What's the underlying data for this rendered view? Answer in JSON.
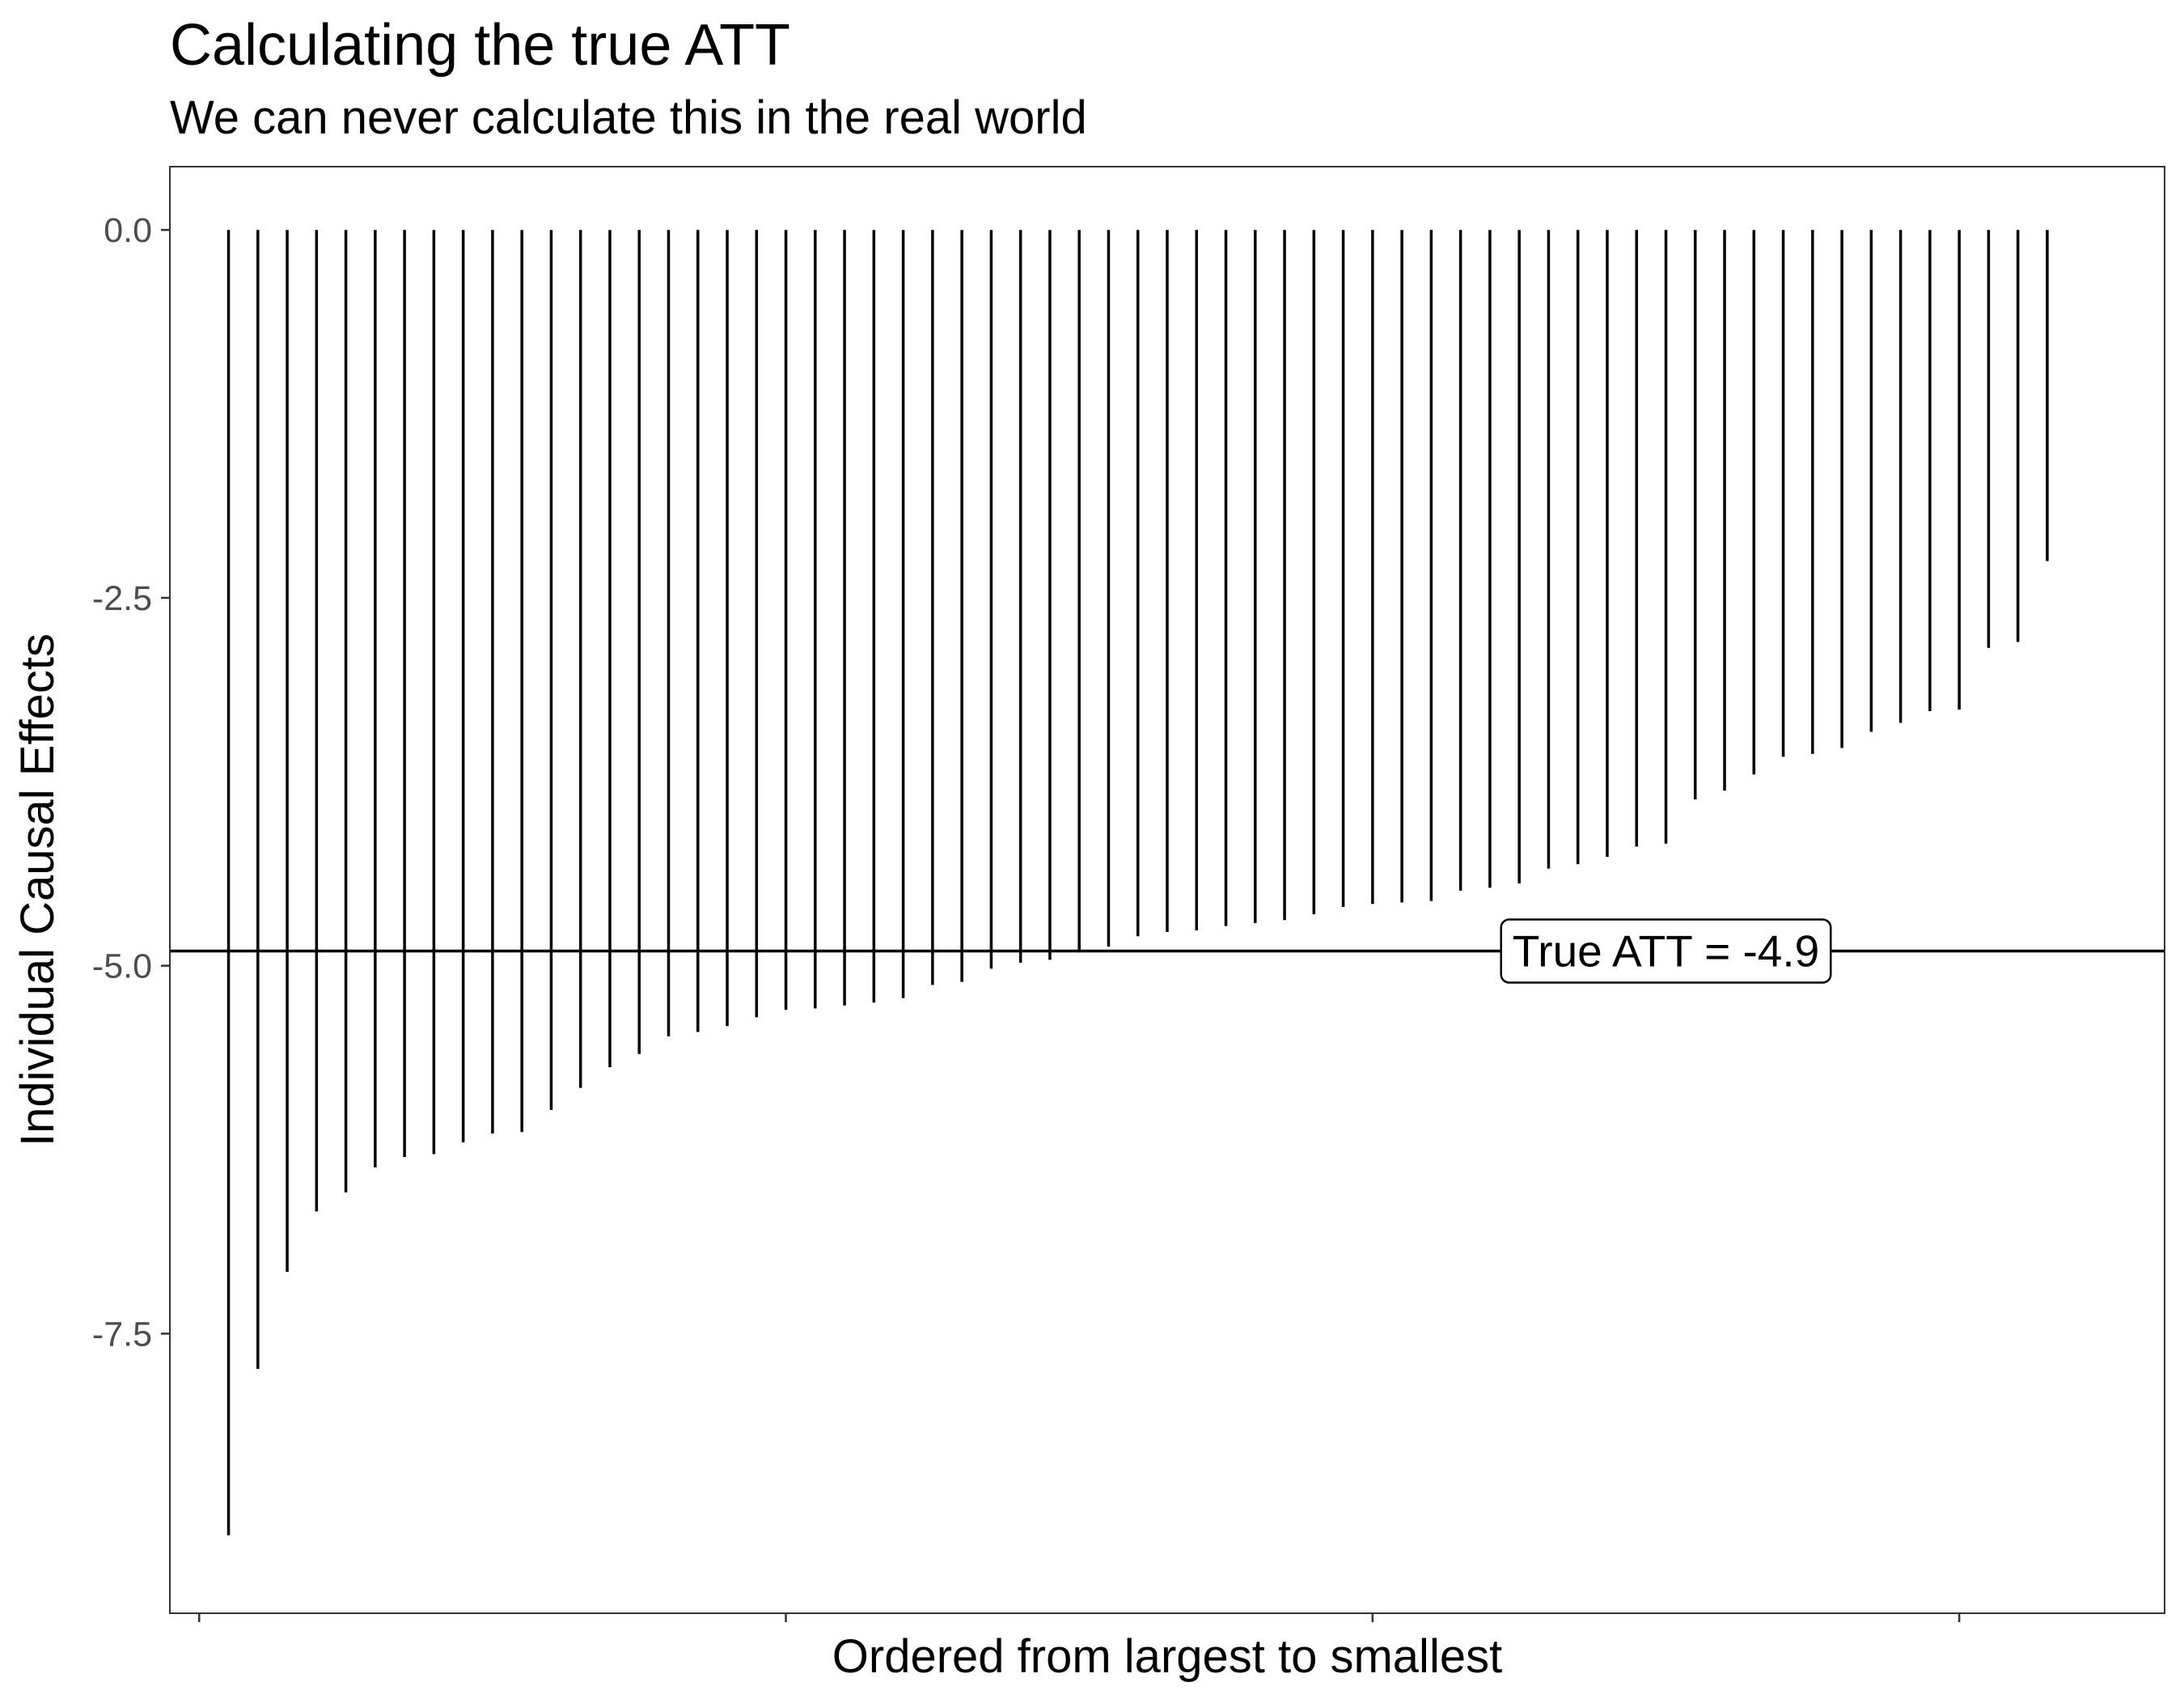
{
  "chart_data": {
    "type": "bar",
    "title": "Calculating the true ATT",
    "subtitle": "We can never calculate this in the real world",
    "xlabel": "Ordered from largest to smallest",
    "ylabel": "Individual Causal Effects",
    "x": [
      1,
      2,
      3,
      4,
      5,
      6,
      7,
      8,
      9,
      10,
      11,
      12,
      13,
      14,
      15,
      16,
      17,
      18,
      19,
      20,
      21,
      22,
      23,
      24,
      25,
      26,
      27,
      28,
      29,
      30,
      31,
      32,
      33,
      34,
      35,
      36,
      37,
      38,
      39,
      40,
      41,
      42,
      43,
      44,
      45,
      46,
      47,
      48,
      49,
      50,
      51,
      52,
      53,
      54,
      55,
      56,
      57,
      58,
      59,
      60,
      61,
      62,
      63
    ],
    "values": [
      -8.87,
      -7.74,
      -7.08,
      -6.67,
      -6.54,
      -6.37,
      -6.3,
      -6.28,
      -6.2,
      -6.14,
      -6.13,
      -5.98,
      -5.83,
      -5.69,
      -5.6,
      -5.48,
      -5.45,
      -5.41,
      -5.35,
      -5.3,
      -5.29,
      -5.27,
      -5.25,
      -5.22,
      -5.13,
      -5.11,
      -5.02,
      -4.98,
      -4.96,
      -4.91,
      -4.87,
      -4.8,
      -4.77,
      -4.76,
      -4.73,
      -4.71,
      -4.69,
      -4.65,
      -4.6,
      -4.58,
      -4.57,
      -4.56,
      -4.49,
      -4.47,
      -4.44,
      -4.34,
      -4.31,
      -4.26,
      -4.19,
      -4.17,
      -3.87,
      -3.81,
      -3.7,
      -3.58,
      -3.56,
      -3.52,
      -3.41,
      -3.35,
      -3.27,
      -3.26,
      -2.84,
      -2.8,
      -2.25
    ],
    "xlim": [
      -1,
      67
    ],
    "ylim": [
      -9.4,
      0.43
    ],
    "x_ticks": [
      0,
      20,
      40,
      60
    ],
    "y_ticks": [
      0.0,
      -2.5,
      -5.0,
      -7.5
    ],
    "y_tick_labels": [
      "0.0",
      "-2.5",
      "-5.0",
      "-7.5"
    ],
    "hline": -4.9,
    "annotation": {
      "text": "True ATT = -4.9",
      "x": 50,
      "y": -4.9
    },
    "grid": false,
    "legend": "none",
    "colors": {
      "bars": "#000000",
      "panel_border": "#333333",
      "tick_label": "#4d4d4d"
    }
  }
}
